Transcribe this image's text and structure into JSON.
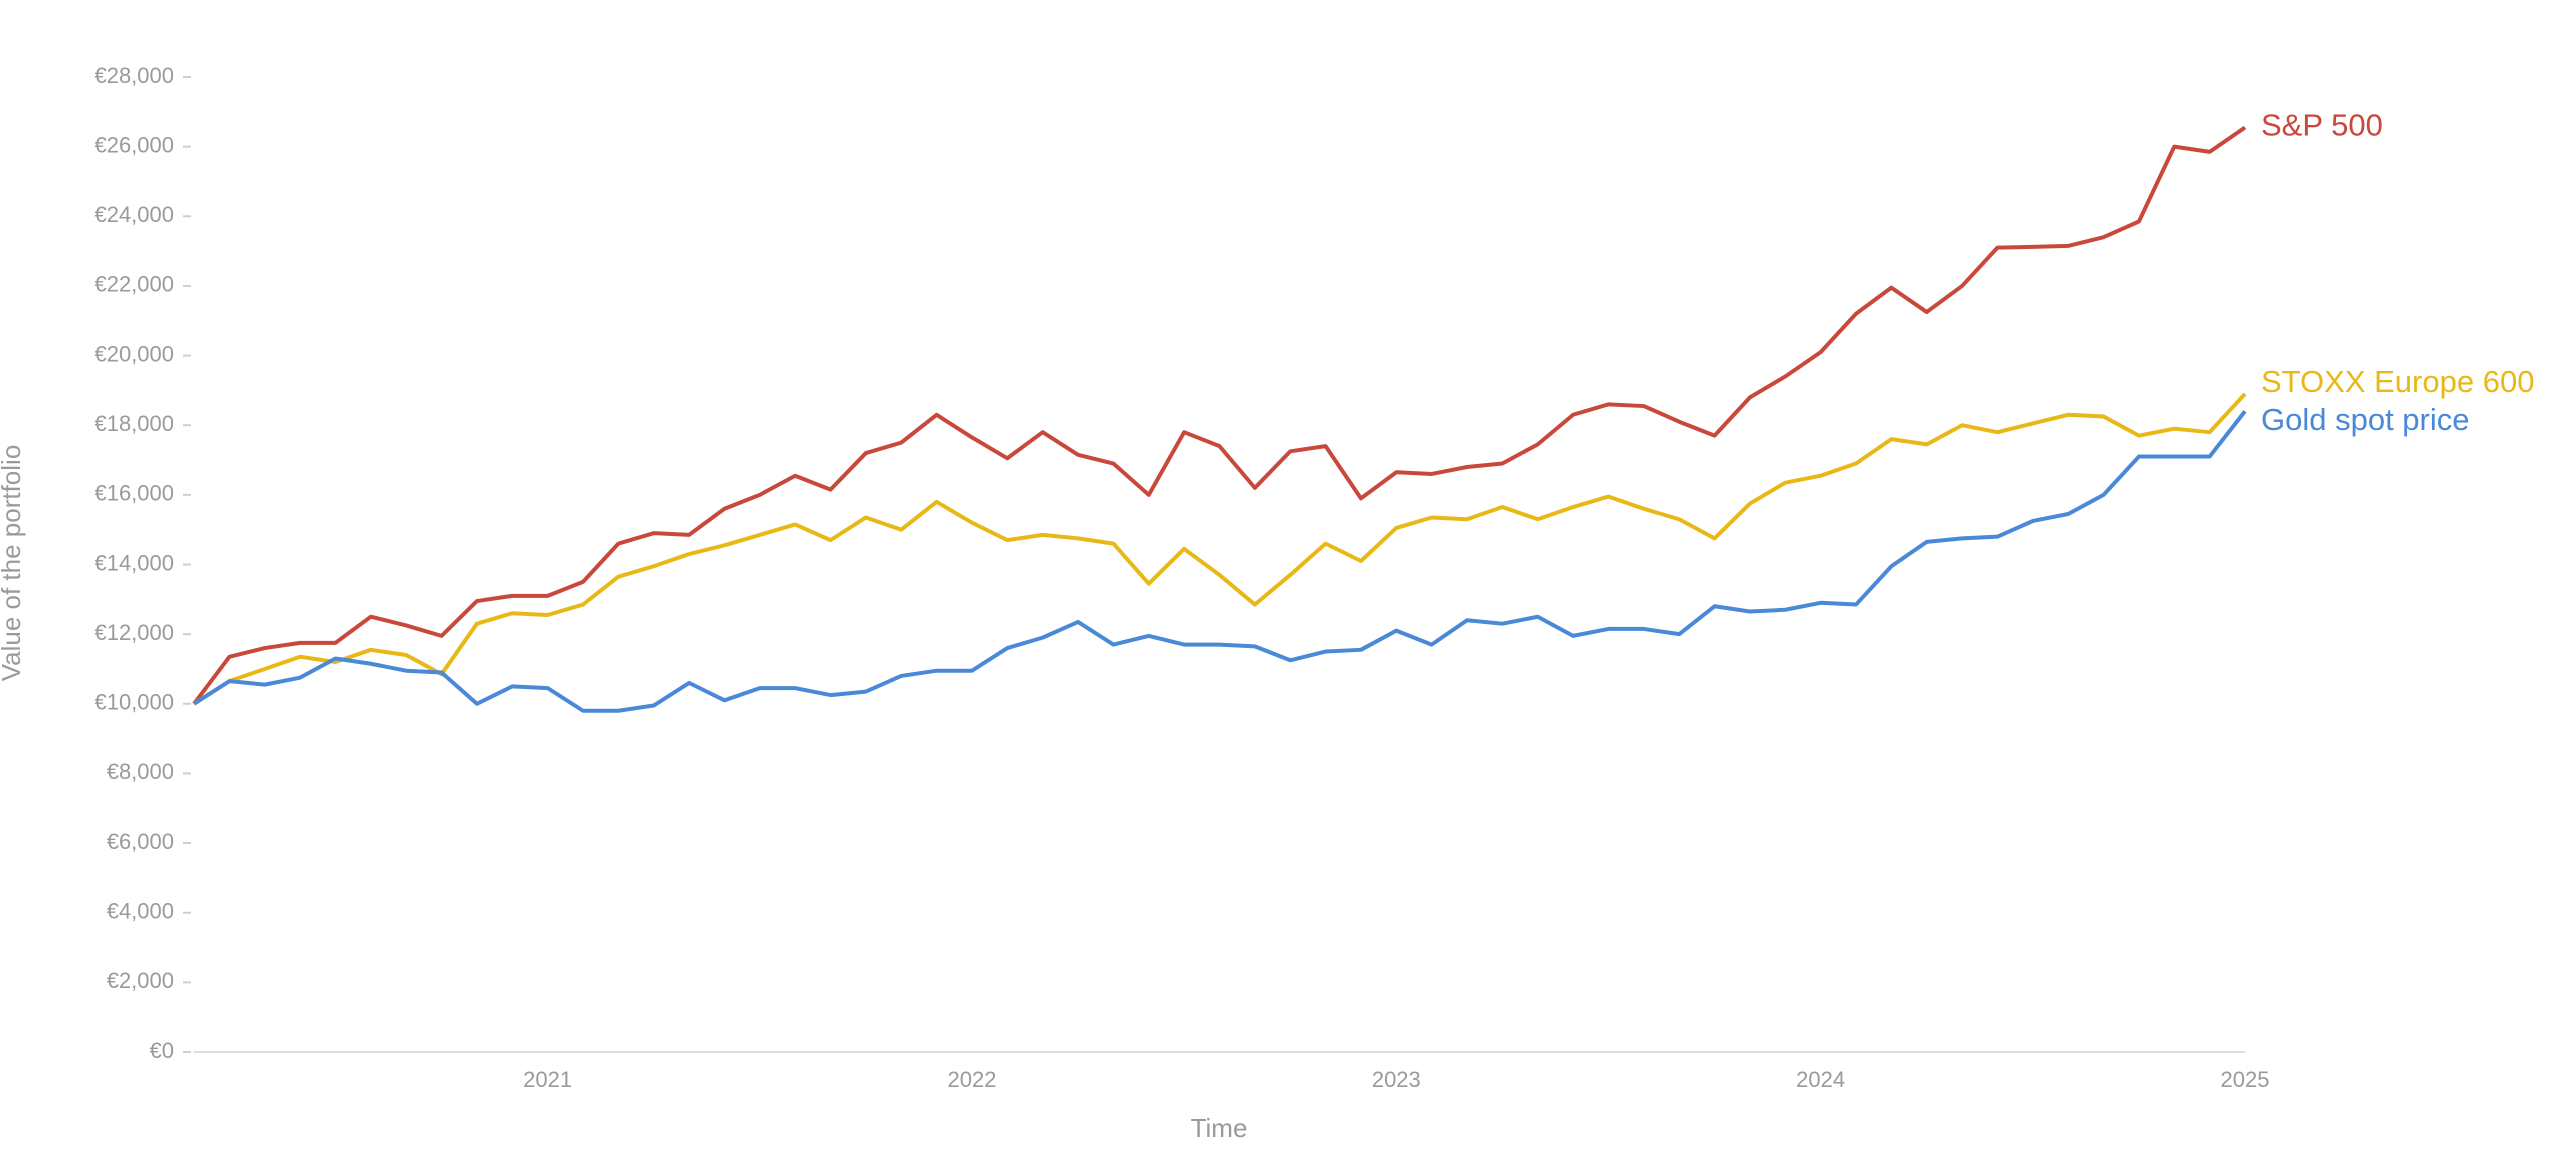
{
  "chart_data": {
    "type": "line",
    "y_label": "Value of the portfolio",
    "x_label": "Time",
    "categories": [
      null,
      null,
      null,
      null,
      null,
      null,
      null,
      null,
      null,
      null,
      "2021",
      null,
      null,
      null,
      null,
      null,
      null,
      null,
      null,
      null,
      null,
      null,
      "2022",
      null,
      null,
      null,
      null,
      null,
      null,
      null,
      null,
      null,
      null,
      null,
      "2023",
      null,
      null,
      null,
      null,
      null,
      null,
      null,
      null,
      null,
      null,
      null,
      "2024",
      null,
      null,
      null,
      null,
      null,
      null,
      null,
      null,
      null,
      null,
      null,
      "2025"
    ],
    "series": [
      {
        "name": "S&P 500",
        "color": "#c9483c",
        "values": [
          10000,
          11350,
          11600,
          11750,
          11750,
          12500,
          12250,
          11950,
          12950,
          13100,
          13100,
          13500,
          14600,
          14900,
          14850,
          15600,
          16000,
          16550,
          16150,
          17200,
          17500,
          18300,
          17650,
          17050,
          17800,
          17150,
          16900,
          16000,
          17800,
          17400,
          16200,
          17250,
          17400,
          15900,
          16650,
          16600,
          16800,
          16900,
          17450,
          18300,
          18600,
          18550,
          18100,
          17700,
          18800,
          19400,
          20100,
          21200,
          21950,
          21250,
          22000,
          23100,
          23120,
          23150,
          23400,
          23850,
          26000,
          25850,
          26550
        ]
      },
      {
        "name": "STOXX Europe 600",
        "color": "#e8b816",
        "values": [
          10000,
          10650,
          11000,
          11350,
          11200,
          11550,
          11400,
          10850,
          12300,
          12600,
          12550,
          12850,
          13650,
          13950,
          14300,
          14550,
          14850,
          15150,
          14700,
          15350,
          15000,
          15800,
          15200,
          14700,
          14850,
          14750,
          14600,
          13450,
          14450,
          13700,
          12850,
          13700,
          14600,
          14100,
          15050,
          15350,
          15300,
          15650,
          15300,
          15650,
          15950,
          15600,
          15300,
          14750,
          15750,
          16350,
          16550,
          16900,
          17600,
          17450,
          18000,
          17800,
          18050,
          18300,
          18250,
          17700,
          17900,
          17800,
          18900
        ]
      },
      {
        "name": "Gold spot price",
        "color": "#4a88d8",
        "values": [
          10000,
          10650,
          10550,
          10750,
          11300,
          11150,
          10950,
          10900,
          10000,
          10500,
          10450,
          9800,
          9800,
          9950,
          10600,
          10100,
          10450,
          10450,
          10250,
          10350,
          10800,
          10950,
          10950,
          11600,
          11900,
          12350,
          11700,
          11950,
          11700,
          11700,
          11650,
          11250,
          11500,
          11550,
          12100,
          11700,
          12400,
          12300,
          12500,
          11950,
          12150,
          12150,
          12000,
          12800,
          12650,
          12700,
          12900,
          12850,
          13950,
          14650,
          14750,
          14800,
          15250,
          15450,
          16000,
          17100,
          17100,
          17100,
          18400
        ]
      }
    ],
    "ylim": [
      0,
      28000
    ],
    "yticks": [
      {
        "value": 0,
        "label": "€0"
      },
      {
        "value": 2000,
        "label": "€2,000"
      },
      {
        "value": 4000,
        "label": "€4,000"
      },
      {
        "value": 6000,
        "label": "€6,000"
      },
      {
        "value": 8000,
        "label": "€8,000"
      },
      {
        "value": 10000,
        "label": "€10,000"
      },
      {
        "value": 12000,
        "label": "€12,000"
      },
      {
        "value": 14000,
        "label": "€14,000"
      },
      {
        "value": 16000,
        "label": "€16,000"
      },
      {
        "value": 18000,
        "label": "€18,000"
      },
      {
        "value": 20000,
        "label": "€20,000"
      },
      {
        "value": 22000,
        "label": "€22,000"
      },
      {
        "value": 24000,
        "label": "€24,000"
      },
      {
        "value": 26000,
        "label": "€26,000"
      },
      {
        "value": 28000,
        "label": "€28,000"
      }
    ]
  }
}
